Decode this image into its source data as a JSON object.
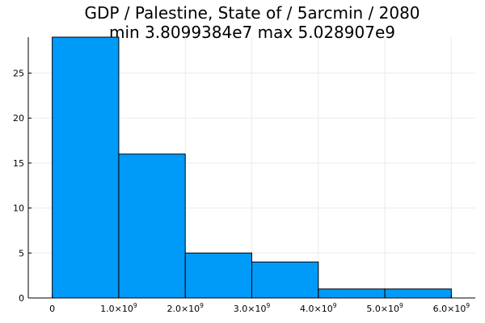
{
  "chart_data": {
    "type": "bar",
    "title": "GDP / Palestine, State of / 5arcmin / 2080",
    "subtitle": "min 3.8099384e7  max 5.028907e9",
    "xlabel": "",
    "ylabel": "",
    "bins": [
      {
        "x0": 0,
        "x1": 1000000000,
        "count": 29
      },
      {
        "x0": 1000000000,
        "x1": 2000000000,
        "count": 16
      },
      {
        "x0": 2000000000,
        "x1": 3000000000,
        "count": 5
      },
      {
        "x0": 3000000000,
        "x1": 4000000000,
        "count": 4
      },
      {
        "x0": 4000000000,
        "x1": 5000000000,
        "count": 1
      },
      {
        "x0": 5000000000,
        "x1": 6000000000,
        "count": 1
      }
    ],
    "xlim": [
      -360000000,
      6360000000
    ],
    "ylim": [
      0,
      29
    ],
    "x_ticks": [
      {
        "value": 0,
        "mant": "0",
        "exp": ""
      },
      {
        "value": 1000000000,
        "mant": "1.0×10",
        "exp": "9"
      },
      {
        "value": 2000000000,
        "mant": "2.0×10",
        "exp": "9"
      },
      {
        "value": 3000000000,
        "mant": "3.0×10",
        "exp": "9"
      },
      {
        "value": 4000000000,
        "mant": "4.0×10",
        "exp": "9"
      },
      {
        "value": 5000000000,
        "mant": "5.0×10",
        "exp": "9"
      },
      {
        "value": 6000000000,
        "mant": "6.0×10",
        "exp": "9"
      }
    ],
    "y_ticks": [
      0,
      5,
      10,
      15,
      20,
      25
    ],
    "grid": true,
    "legend": "none",
    "colors": {
      "bar": "#009af9",
      "bar_edge": "#000000",
      "grid": "#ebebeb",
      "axis": "#000000"
    }
  }
}
